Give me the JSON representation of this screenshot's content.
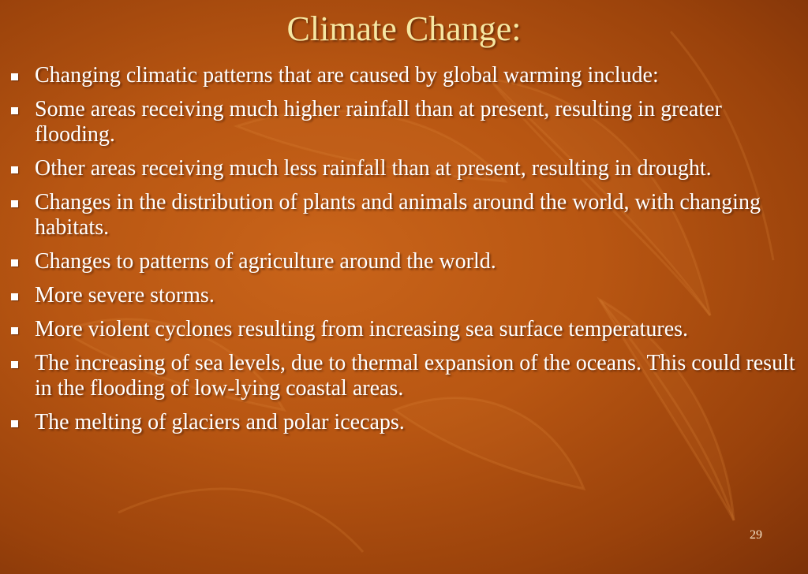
{
  "slide": {
    "title": "Climate Change:",
    "bullets": [
      "Changing climatic patterns that are caused by global warming include:",
      "Some areas receiving much higher rainfall than at present, resulting in greater flooding.",
      "Other areas receiving much less rainfall than at present, resulting in drought.",
      "Changes in the distribution of plants and animals around the world, with changing habitats.",
      "Changes to patterns of agriculture around the world.",
      "More severe storms.",
      "More violent cyclones resulting from increasing sea surface temperatures.",
      "The increasing of sea levels, due to thermal expansion of the oceans. This could result in the flooding of low-lying coastal areas.",
      "The melting of glaciers and polar icecaps."
    ],
    "page_number": "29"
  },
  "colors": {
    "background": "#b85612",
    "title": "#f6e7a2",
    "text": "#ffffff"
  },
  "icons": {
    "bullet": "square-bullet-icon",
    "background": "leaf-pattern"
  }
}
